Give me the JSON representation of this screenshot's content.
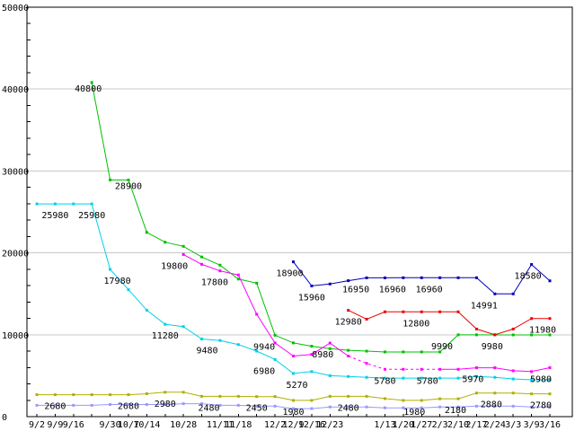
{
  "chart_data": {
    "type": "line",
    "title": "",
    "xlabel": "",
    "ylabel": "",
    "ylim": [
      0,
      50000
    ],
    "x_index_max": 28,
    "grid": "horizontal",
    "legend": "none",
    "y_ticks": [
      {
        "v": 0,
        "label": "0"
      },
      {
        "v": 10000,
        "label": "10000"
      },
      {
        "v": 20000,
        "label": "20000"
      },
      {
        "v": 30000,
        "label": "30000"
      },
      {
        "v": 40000,
        "label": "40000"
      },
      {
        "v": 50000,
        "label": "50000"
      }
    ],
    "x_ticks": [
      {
        "i": 0,
        "label": "9/2"
      },
      {
        "i": 1,
        "label": "9/9"
      },
      {
        "i": 2,
        "label": "9/16"
      },
      {
        "i": 4,
        "label": "9/30"
      },
      {
        "i": 5,
        "label": "10/7"
      },
      {
        "i": 6,
        "label": "10/14"
      },
      {
        "i": 8,
        "label": "10/28"
      },
      {
        "i": 10,
        "label": "11/11"
      },
      {
        "i": 11,
        "label": "11/18"
      },
      {
        "i": 13,
        "label": "12/2"
      },
      {
        "i": 14,
        "label": "12/9"
      },
      {
        "i": 15,
        "label": "12/16"
      },
      {
        "i": 16,
        "label": "12/23"
      },
      {
        "i": 19,
        "label": "1/13"
      },
      {
        "i": 20,
        "label": "1/20"
      },
      {
        "i": 21,
        "label": "1/27"
      },
      {
        "i": 22,
        "label": "2/3"
      },
      {
        "i": 23,
        "label": "2/10"
      },
      {
        "i": 24,
        "label": "2/17"
      },
      {
        "i": 25,
        "label": "2/24"
      },
      {
        "i": 26,
        "label": "3/3"
      },
      {
        "i": 27,
        "label": "3/9"
      },
      {
        "i": 28,
        "label": "3/16"
      }
    ],
    "series": [
      {
        "name": "periwinkle",
        "color": "#9999ff",
        "points": [
          [
            0,
            1380
          ],
          [
            1,
            1380
          ],
          [
            2,
            1380
          ],
          [
            3,
            1380
          ],
          [
            4,
            1480
          ],
          [
            5,
            1480
          ],
          [
            6,
            1480
          ],
          [
            7,
            1480
          ],
          [
            8,
            1580
          ],
          [
            9,
            1580
          ],
          [
            10,
            1380
          ],
          [
            11,
            1380
          ],
          [
            12,
            1280
          ],
          [
            13,
            1280
          ],
          [
            14,
            980
          ],
          [
            15,
            980
          ],
          [
            16,
            1180
          ],
          [
            17,
            1180
          ],
          [
            18,
            1180
          ],
          [
            19,
            1080
          ],
          [
            20,
            1080
          ],
          [
            21,
            1080
          ],
          [
            22,
            1180
          ],
          [
            23,
            1180
          ],
          [
            24,
            1280
          ],
          [
            25,
            1280
          ],
          [
            26,
            1280
          ],
          [
            27,
            1180
          ],
          [
            28,
            1180
          ]
        ]
      },
      {
        "name": "olive",
        "color": "#b0b000",
        "points": [
          [
            0,
            2680
          ],
          [
            1,
            2680
          ],
          [
            2,
            2680
          ],
          [
            3,
            2680
          ],
          [
            4,
            2680
          ],
          [
            5,
            2680
          ],
          [
            6,
            2800
          ],
          [
            7,
            2980
          ],
          [
            8,
            2980
          ],
          [
            9,
            2480
          ],
          [
            10,
            2480
          ],
          [
            11,
            2480
          ],
          [
            12,
            2450
          ],
          [
            13,
            2450
          ],
          [
            14,
            1980
          ],
          [
            15,
            1980
          ],
          [
            16,
            2480
          ],
          [
            17,
            2480
          ],
          [
            18,
            2480
          ],
          [
            19,
            2200
          ],
          [
            20,
            1980
          ],
          [
            21,
            1980
          ],
          [
            22,
            2180
          ],
          [
            23,
            2180
          ],
          [
            24,
            2880
          ],
          [
            25,
            2880
          ],
          [
            26,
            2880
          ],
          [
            27,
            2780
          ],
          [
            28,
            2780
          ]
        ]
      },
      {
        "name": "cyan",
        "color": "#00d0e8",
        "points": [
          [
            0,
            25980
          ],
          [
            1,
            25980
          ],
          [
            2,
            25980
          ],
          [
            3,
            25980
          ],
          [
            4,
            17980
          ],
          [
            5,
            15500
          ],
          [
            6,
            13000
          ],
          [
            7,
            11280
          ],
          [
            8,
            11000
          ],
          [
            9,
            9480
          ],
          [
            10,
            9300
          ],
          [
            11,
            8800
          ],
          [
            12,
            8000
          ],
          [
            13,
            6980
          ],
          [
            14,
            5270
          ],
          [
            15,
            5500
          ],
          [
            16,
            5000
          ],
          [
            17,
            4900
          ],
          [
            18,
            4800
          ],
          [
            19,
            4700
          ],
          [
            20,
            4700
          ],
          [
            21,
            4700
          ],
          [
            22,
            4700
          ],
          [
            23,
            4700
          ],
          [
            24,
            4900
          ],
          [
            25,
            4800
          ],
          [
            26,
            4600
          ],
          [
            27,
            4500
          ],
          [
            28,
            4500
          ]
        ]
      },
      {
        "name": "green",
        "color": "#00c000",
        "points": [
          [
            3,
            40800
          ],
          [
            4,
            28900
          ],
          [
            5,
            28900
          ],
          [
            6,
            22500
          ],
          [
            7,
            21300
          ],
          [
            8,
            20800
          ],
          [
            9,
            19500
          ],
          [
            10,
            18500
          ],
          [
            11,
            16800
          ],
          [
            12,
            16300
          ],
          [
            13,
            9940
          ],
          [
            14,
            9000
          ],
          [
            15,
            8600
          ],
          [
            16,
            8300
          ],
          [
            17,
            8100
          ],
          [
            18,
            8000
          ],
          [
            19,
            7900
          ],
          [
            20,
            7900
          ],
          [
            21,
            7900
          ],
          [
            22,
            7900
          ],
          [
            23,
            9990
          ],
          [
            24,
            9990
          ],
          [
            25,
            9980
          ],
          [
            26,
            9980
          ],
          [
            27,
            9980
          ],
          [
            28,
            9980
          ]
        ]
      },
      {
        "name": "magenta",
        "color": "#ff00ff",
        "dash_ranges": [
          [
            17,
            22
          ]
        ],
        "points": [
          [
            8,
            19800
          ],
          [
            9,
            18600
          ],
          [
            10,
            17800
          ],
          [
            11,
            17300
          ],
          [
            12,
            12500
          ],
          [
            13,
            9000
          ],
          [
            14,
            7400
          ],
          [
            15,
            7600
          ],
          [
            16,
            8980
          ],
          [
            17,
            7400
          ],
          [
            18,
            6500
          ],
          [
            19,
            5780
          ],
          [
            20,
            5780
          ],
          [
            21,
            5780
          ],
          [
            22,
            5780
          ],
          [
            23,
            5780
          ],
          [
            24,
            5970
          ],
          [
            25,
            5970
          ],
          [
            26,
            5600
          ],
          [
            27,
            5500
          ],
          [
            28,
            5980
          ]
        ]
      },
      {
        "name": "red",
        "color": "#ee0000",
        "points": [
          [
            17,
            12980
          ],
          [
            18,
            11900
          ],
          [
            19,
            12800
          ],
          [
            20,
            12800
          ],
          [
            21,
            12800
          ],
          [
            22,
            12800
          ],
          [
            23,
            12800
          ],
          [
            24,
            10700
          ],
          [
            25,
            10000
          ],
          [
            26,
            10700
          ],
          [
            27,
            11980
          ],
          [
            28,
            11980
          ]
        ]
      },
      {
        "name": "navy",
        "color": "#0000bb",
        "points": [
          [
            14,
            18900
          ],
          [
            15,
            15960
          ],
          [
            16,
            16200
          ],
          [
            17,
            16600
          ],
          [
            18,
            16950
          ],
          [
            19,
            16950
          ],
          [
            20,
            16960
          ],
          [
            21,
            16960
          ],
          [
            22,
            16960
          ],
          [
            23,
            16960
          ],
          [
            24,
            16960
          ],
          [
            25,
            14991
          ],
          [
            26,
            14991
          ],
          [
            27,
            18580
          ],
          [
            28,
            16580
          ]
        ]
      }
    ],
    "point_labels": [
      {
        "s": "green",
        "i": 3,
        "t": "40800",
        "dx": -4,
        "dy": 10
      },
      {
        "s": "green",
        "i": 5,
        "t": "28900",
        "dy": 10
      },
      {
        "s": "cyan",
        "i": 1,
        "t": "25980"
      },
      {
        "s": "cyan",
        "i": 3,
        "t": "25980"
      },
      {
        "s": "cyan",
        "i": 4,
        "t": "17980",
        "dx": 8
      },
      {
        "s": "magenta",
        "i": 8,
        "t": "19800",
        "dx": -10
      },
      {
        "s": "magenta",
        "i": 10,
        "t": "17800",
        "dx": -6
      },
      {
        "s": "cyan",
        "i": 7,
        "t": "11280"
      },
      {
        "s": "cyan",
        "i": 9,
        "t": "9480",
        "dx": 6
      },
      {
        "s": "green",
        "i": 13,
        "t": "9940",
        "dx": -12
      },
      {
        "s": "cyan",
        "i": 13,
        "t": "6980",
        "dx": -12
      },
      {
        "s": "cyan",
        "i": 14,
        "t": "5270",
        "dx": 4
      },
      {
        "s": "navy",
        "i": 14,
        "t": "18900",
        "dx": -4
      },
      {
        "s": "navy",
        "i": 15,
        "t": "15960"
      },
      {
        "s": "navy",
        "i": 18,
        "t": "16950",
        "dx": -12
      },
      {
        "s": "navy",
        "i": 20,
        "t": "16960",
        "dx": -12
      },
      {
        "s": "navy",
        "i": 22,
        "t": "16960",
        "dx": -12
      },
      {
        "s": "navy",
        "i": 25,
        "t": "14991",
        "dx": -12
      },
      {
        "s": "navy",
        "i": 27,
        "t": "18580",
        "dx": -4
      },
      {
        "s": "red",
        "i": 17,
        "t": "12980"
      },
      {
        "s": "red",
        "i": 21,
        "t": "12800",
        "dx": -6
      },
      {
        "s": "red",
        "i": 28,
        "t": "11980",
        "dx": -8
      },
      {
        "s": "magenta",
        "i": 16,
        "t": "8980",
        "dx": -8
      },
      {
        "s": "magenta",
        "i": 19,
        "t": "5780"
      },
      {
        "s": "magenta",
        "i": 22,
        "t": "5780",
        "dx": -14
      },
      {
        "s": "magenta",
        "i": 24,
        "t": "5970",
        "dx": -4
      },
      {
        "s": "green",
        "i": 23,
        "t": "9990",
        "dx": -18
      },
      {
        "s": "green",
        "i": 25,
        "t": "9980",
        "dx": -3
      },
      {
        "s": "magenta",
        "i": 28,
        "t": "5980",
        "dx": -10
      },
      {
        "s": "olive",
        "i": 1,
        "t": "2680"
      },
      {
        "s": "olive",
        "i": 5,
        "t": "2680"
      },
      {
        "s": "olive",
        "i": 7,
        "t": "2980"
      },
      {
        "s": "olive",
        "i": 9,
        "t": "2480",
        "dx": 8
      },
      {
        "s": "olive",
        "i": 12,
        "t": "2450"
      },
      {
        "s": "olive",
        "i": 14,
        "t": "1980"
      },
      {
        "s": "olive",
        "i": 17,
        "t": "2480"
      },
      {
        "s": "olive",
        "i": 21,
        "t": "1980",
        "dx": -8
      },
      {
        "s": "olive",
        "i": 23,
        "t": "2180",
        "dx": -3
      },
      {
        "s": "olive",
        "i": 25,
        "t": "2880",
        "dx": -4
      },
      {
        "s": "olive",
        "i": 28,
        "t": "2780",
        "dx": -10
      }
    ],
    "colors": {
      "background": "#ffffff",
      "grid": "#c8c8c8",
      "axis": "#000000",
      "text": "#000000"
    }
  }
}
